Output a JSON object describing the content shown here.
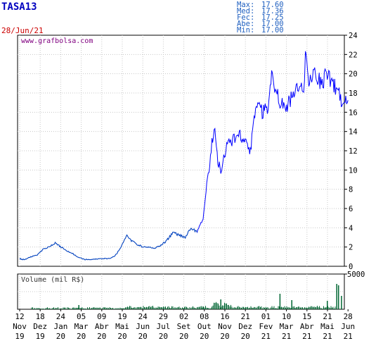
{
  "header": {
    "ticker": "TASA13",
    "date": "28/Jun/21",
    "stats": [
      {
        "label": "Max:",
        "value": "17.60"
      },
      {
        "label": "Med:",
        "value": "17.36"
      },
      {
        "label": "Fec:",
        "value": "17.25"
      },
      {
        "label": "Abe:",
        "value": "17.00"
      },
      {
        "label": "Min:",
        "value": "17.00"
      }
    ],
    "watermark": "www.grafbolsa.com"
  },
  "colors": {
    "price_line": "#0000ff",
    "price_dark": "#008080",
    "volume_bar": "#006633",
    "ticker": "#0000c0",
    "date": "#cc0000",
    "stats": "#2060c0",
    "grid": "#c8c8c8",
    "watermark": "#800080"
  },
  "chart_data": [
    {
      "type": "line",
      "name": "price",
      "ylim": [
        0,
        24
      ],
      "yticks": [
        0,
        2,
        4,
        6,
        8,
        10,
        12,
        14,
        16,
        18,
        20,
        22,
        24
      ],
      "x_ticks": [
        {
          "top": "12",
          "bottom": "Nov",
          "year": "19"
        },
        {
          "top": "18",
          "bottom": "Dez",
          "year": "19"
        },
        {
          "top": "24",
          "bottom": "Jan",
          "year": "20"
        },
        {
          "top": "05",
          "bottom": "Mar",
          "year": "20"
        },
        {
          "top": "09",
          "bottom": "Abr",
          "year": "20"
        },
        {
          "top": "19",
          "bottom": "Mai",
          "year": "20"
        },
        {
          "top": "24",
          "bottom": "Jun",
          "year": "20"
        },
        {
          "top": "29",
          "bottom": "Jul",
          "year": "20"
        },
        {
          "top": "02",
          "bottom": "Set",
          "year": "20"
        },
        {
          "top": "08",
          "bottom": "Out",
          "year": "20"
        },
        {
          "top": "16",
          "bottom": "Nov",
          "year": "20"
        },
        {
          "top": "21",
          "bottom": "Dez",
          "year": "20"
        },
        {
          "top": "01",
          "bottom": "Fev",
          "year": "21"
        },
        {
          "top": "10",
          "bottom": "Mar",
          "year": "21"
        },
        {
          "top": "15",
          "bottom": "Abr",
          "year": "21"
        },
        {
          "top": "21",
          "bottom": "Mai",
          "year": "21"
        },
        {
          "top": "28",
          "bottom": "Jun",
          "year": "21"
        }
      ],
      "points": [
        [
          0,
          0.8
        ],
        [
          0.5,
          0.7
        ],
        [
          1,
          0.75
        ],
        [
          2,
          1.0
        ],
        [
          3,
          1.2
        ],
        [
          4,
          1.8
        ],
        [
          5,
          2.0
        ],
        [
          6,
          2.4
        ],
        [
          7,
          2.0
        ],
        [
          8,
          1.6
        ],
        [
          9,
          1.3
        ],
        [
          10,
          0.9
        ],
        [
          11,
          0.7
        ],
        [
          12,
          0.7
        ],
        [
          13,
          0.75
        ],
        [
          14,
          0.8
        ],
        [
          15,
          0.8
        ],
        [
          16,
          1.0
        ],
        [
          17,
          1.8
        ],
        [
          18,
          3.2
        ],
        [
          19,
          2.6
        ],
        [
          19.6,
          2.4
        ],
        [
          20,
          2.2
        ],
        [
          21,
          2.0
        ],
        [
          22,
          2.0
        ],
        [
          23,
          1.9
        ],
        [
          24,
          2.2
        ],
        [
          25,
          2.8
        ],
        [
          26,
          3.5
        ],
        [
          27,
          3.2
        ],
        [
          28,
          3.0
        ],
        [
          29,
          4.0
        ],
        [
          30,
          3.6
        ],
        [
          31,
          5.0
        ],
        [
          31.5,
          8.0
        ],
        [
          32,
          10.0
        ],
        [
          32.5,
          13.0
        ],
        [
          33,
          14.0
        ],
        [
          33.5,
          11.0
        ],
        [
          34,
          10.0
        ],
        [
          35,
          12.5
        ],
        [
          36,
          13.0
        ],
        [
          37,
          14.0
        ],
        [
          38,
          13.0
        ],
        [
          39,
          12.0
        ],
        [
          40,
          17.0
        ],
        [
          41,
          16.0
        ],
        [
          42,
          16.5
        ],
        [
          42.7,
          21.0
        ],
        [
          43,
          19.0
        ],
        [
          44,
          17.0
        ],
        [
          45,
          16.5
        ],
        [
          46,
          17.5
        ],
        [
          47,
          19.0
        ],
        [
          48,
          18.0
        ],
        [
          48.3,
          22.0
        ],
        [
          49,
          19.0
        ],
        [
          50,
          20.0
        ],
        [
          51,
          19.0
        ],
        [
          52,
          20.0
        ],
        [
          53,
          19.0
        ],
        [
          54,
          18.0
        ],
        [
          54.5,
          16.3
        ],
        [
          55,
          17.0
        ],
        [
          55.5,
          17.25
        ]
      ]
    },
    {
      "type": "bar",
      "name": "volume",
      "title": "Volume (mil R$)",
      "ylim": [
        0,
        5000
      ],
      "yticks": [
        5000
      ],
      "spikes": [
        [
          9,
          1.0
        ],
        [
          10,
          6.0
        ],
        [
          31,
          4.0
        ],
        [
          34,
          14.0
        ],
        [
          44,
          22.0
        ],
        [
          46,
          13.0
        ],
        [
          52,
          12.0
        ],
        [
          53.6,
          36.0
        ],
        [
          53.9,
          34.0
        ],
        [
          54.4,
          19.0
        ]
      ]
    }
  ]
}
